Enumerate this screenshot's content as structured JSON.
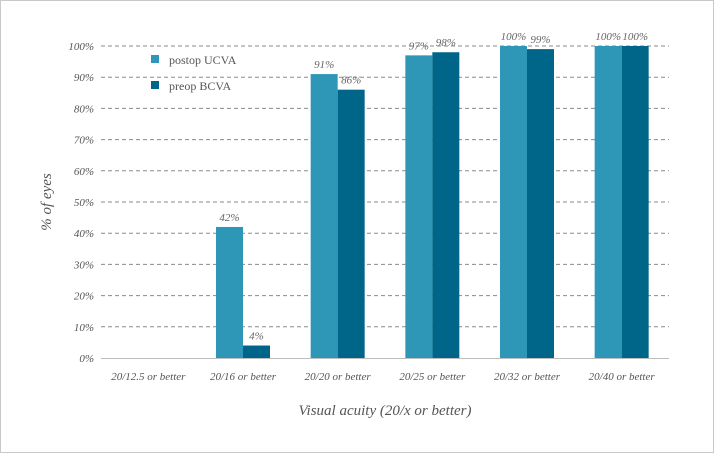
{
  "chart_data": {
    "type": "bar",
    "title": "",
    "xlabel": "Visual acuity (20/x or better)",
    "ylabel": "% of eyes",
    "ylim": [
      0,
      100
    ],
    "yticks": [
      "0%",
      "10%",
      "20%",
      "30%",
      "40%",
      "50%",
      "60%",
      "70%",
      "80%",
      "90%",
      "100%"
    ],
    "grid": true,
    "legend_position": "top-left",
    "categories": [
      "20/12.5 or better",
      "20/16 or better",
      "20/20 or better",
      "20/25 or better",
      "20/32 or better",
      "20/40 or better"
    ],
    "series": [
      {
        "name": "postop UCVA",
        "color": "#2e97b8",
        "values": [
          null,
          42,
          91,
          97,
          100,
          100
        ],
        "labels": [
          "",
          "42%",
          "91%",
          "97%",
          "100%",
          "100%"
        ]
      },
      {
        "name": "preop BCVA",
        "color": "#006689",
        "values": [
          null,
          4,
          86,
          98,
          99,
          100
        ],
        "labels": [
          "",
          "4%",
          "86%",
          "98%",
          "99%",
          "100%"
        ]
      }
    ]
  }
}
